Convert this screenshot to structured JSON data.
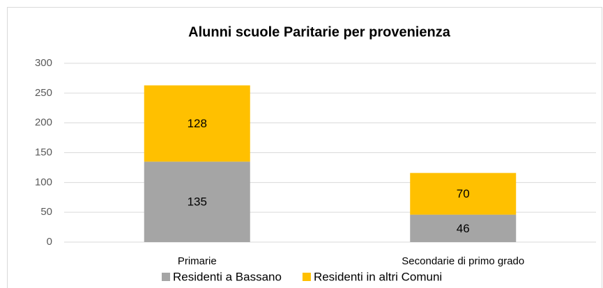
{
  "chart_data": {
    "type": "stacked-bar",
    "title": "Alunni scuole Paritarie per provenienza",
    "categories": [
      "Primarie",
      "Secondarie di primo grado"
    ],
    "series": [
      {
        "name": "Residenti a Bassano",
        "color": "#a5a5a5",
        "values": [
          135,
          46
        ]
      },
      {
        "name": "Residenti in altri Comuni",
        "color": "#ffc000",
        "values": [
          128,
          70
        ]
      }
    ],
    "ylim": [
      0,
      300
    ],
    "yticks": [
      0,
      50,
      100,
      150,
      200,
      250,
      300
    ],
    "grid": true,
    "legend": "bottom"
  }
}
